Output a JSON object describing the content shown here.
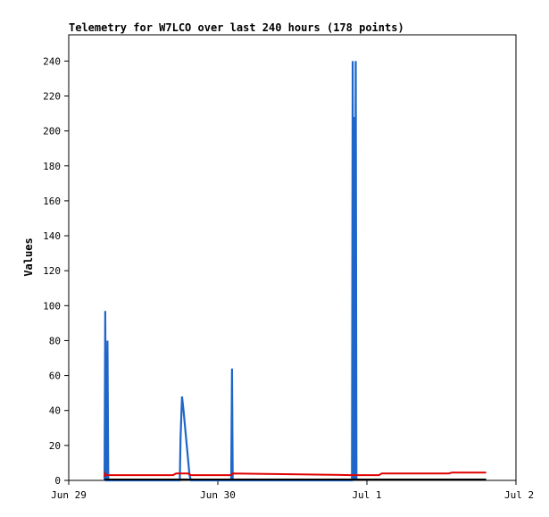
{
  "chart_data": {
    "type": "line",
    "title": "Telemetry for W7LCO over last 240 hours (178 points)",
    "xlabel": "",
    "ylabel": "Values",
    "xlim": [
      0,
      3
    ],
    "ylim": [
      0,
      255
    ],
    "grid": false,
    "x_ticks": [
      {
        "value": 0,
        "label": "Jun 29"
      },
      {
        "value": 1,
        "label": "Jun 30"
      },
      {
        "value": 2,
        "label": "Jul 1"
      },
      {
        "value": 3,
        "label": "Jul 2"
      }
    ],
    "y_ticks": [
      0,
      20,
      40,
      60,
      80,
      100,
      120,
      140,
      160,
      180,
      200,
      220,
      240
    ],
    "colors": {
      "series_blue": "#1f66c9",
      "series_red": "#e00000",
      "series_black": "#000000"
    },
    "series": [
      {
        "color": "#1f66c9",
        "x": [
          0.24,
          0.245,
          0.25,
          0.255,
          0.26,
          0.265,
          0.27,
          0.745,
          0.75,
          0.76,
          0.77,
          0.81,
          0.82,
          1.09,
          1.095,
          1.1,
          1.9,
          1.905,
          1.91,
          1.915,
          1.92,
          1.925,
          1.93
        ],
        "y": [
          0,
          97,
          0,
          0,
          80,
          0,
          0,
          0,
          25,
          48,
          40,
          3,
          0,
          0,
          64,
          0,
          0,
          240,
          0,
          208,
          0,
          240,
          0
        ]
      },
      {
        "color": "#e00000",
        "x": [
          0.24,
          0.245,
          0.25,
          0.27,
          0.7,
          0.72,
          0.8,
          0.82,
          1.09,
          1.1,
          1.9,
          2.08,
          2.1,
          2.55,
          2.57,
          2.8
        ],
        "y": [
          2,
          4,
          3,
          3,
          3,
          4,
          4,
          3,
          3,
          4,
          3,
          3,
          4,
          4,
          4.5,
          4.5
        ]
      },
      {
        "color": "#000000",
        "x": [
          0.24,
          2.8
        ],
        "y": [
          0.5,
          0.5
        ]
      }
    ]
  }
}
